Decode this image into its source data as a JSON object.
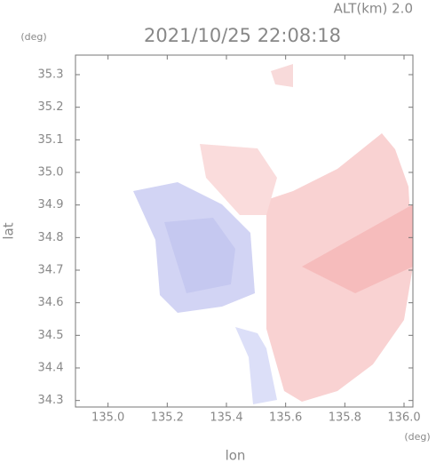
{
  "chart_data": {
    "type": "map",
    "title": "2021/10/25 22:08:18",
    "subtitle": "ALT(km) 2.0",
    "x_label": "lon",
    "y_label": "lat",
    "x_unit": "(deg)",
    "y_unit": "(deg)",
    "xlim": [
      134.89,
      136.03
    ],
    "ylim": [
      34.28,
      35.36
    ],
    "xticks": [
      {
        "value": 135,
        "label": "135.0"
      },
      135.2,
      135.4,
      135.6,
      135.8,
      {
        "value": 136,
        "label": "136.0"
      }
    ],
    "yticks": [
      34.3,
      34.4,
      34.5,
      34.6,
      34.7,
      34.8,
      34.9,
      {
        "value": 35,
        "label": "35.0"
      },
      35.1,
      35.2,
      35.3
    ]
  }
}
